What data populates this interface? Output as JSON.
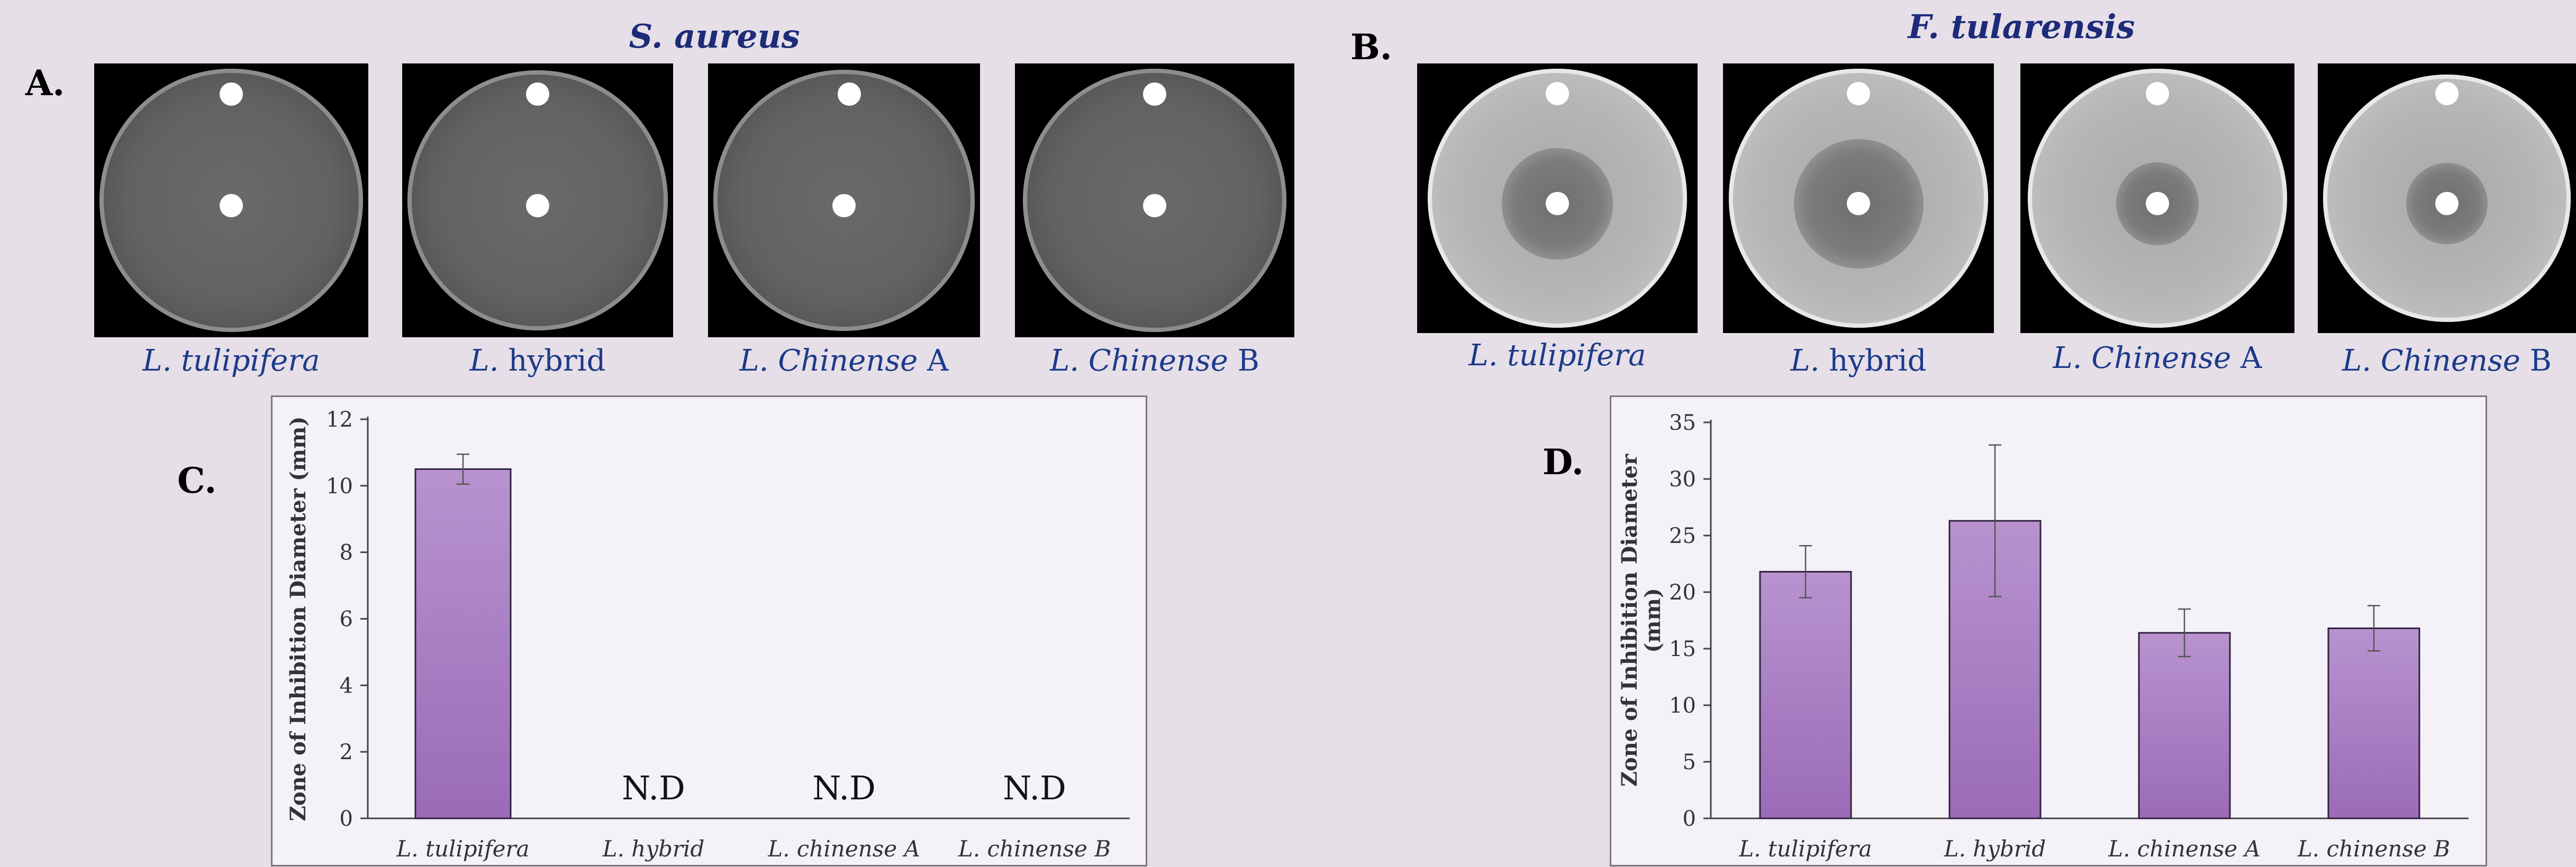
{
  "panels": {
    "a": {
      "letter": "A.",
      "title": "S. aureus",
      "plates": [
        {
          "italic": "L. tulipifera",
          "suffix": "",
          "zone_fraction": 0.0
        },
        {
          "italic": "L.",
          "suffix": " hybrid",
          "zone_fraction": 0.0
        },
        {
          "italic": "L. Chinense",
          "suffix": " A",
          "zone_fraction": 0.0
        },
        {
          "italic": "L. Chinense",
          "suffix": " B",
          "zone_fraction": 0.0
        }
      ]
    },
    "b": {
      "letter": "B.",
      "title": "F. tularensis",
      "plates": [
        {
          "italic": "L. tulipifera",
          "suffix": "",
          "zone_fraction": 0.43
        },
        {
          "italic": "L.",
          "suffix": " hybrid",
          "zone_fraction": 0.5
        },
        {
          "italic": "L. Chinense",
          "suffix": " A",
          "zone_fraction": 0.32
        },
        {
          "italic": "L. Chinense",
          "suffix": " B",
          "zone_fraction": 0.33
        }
      ]
    },
    "c": {
      "letter": "C."
    },
    "d": {
      "letter": "D."
    }
  },
  "colors": {
    "background": "#e6dfe8",
    "bar_top": "#b893cf",
    "bar_bottom": "#9b6bb8",
    "label_blue": "#1d3a8a",
    "title_blue": "#1d2b78"
  },
  "chart_data": [
    {
      "type": "bar",
      "panel": "C",
      "categories": [
        "L. tulipifera",
        "L. hybrid",
        "L. chinense A",
        "L. chinense B"
      ],
      "values": [
        10.5,
        null,
        null,
        null
      ],
      "errors": [
        0.45,
        null,
        null,
        null
      ],
      "annotations": [
        "",
        "N.D",
        "N.D",
        "N.D"
      ],
      "ylabel": "Zone of Inhibition Diameter (mm)",
      "ylim": [
        0,
        12
      ],
      "yticks": [
        0,
        2,
        4,
        6,
        8,
        10,
        12
      ],
      "grid": false
    },
    {
      "type": "bar",
      "panel": "D",
      "categories": [
        "L. tulipifera",
        "L. hybrid",
        "L. chinense A",
        "L. chinense B"
      ],
      "values": [
        21.8,
        26.3,
        16.4,
        16.8
      ],
      "errors": [
        2.3,
        6.7,
        2.1,
        2.0
      ],
      "annotations": [
        "",
        "",
        "",
        ""
      ],
      "ylabel_lines": [
        "Zone of Inhibition Diameter",
        "(mm)"
      ],
      "ylim": [
        0,
        35
      ],
      "yticks": [
        0,
        5,
        10,
        15,
        20,
        25,
        30,
        35
      ],
      "grid": false
    }
  ]
}
